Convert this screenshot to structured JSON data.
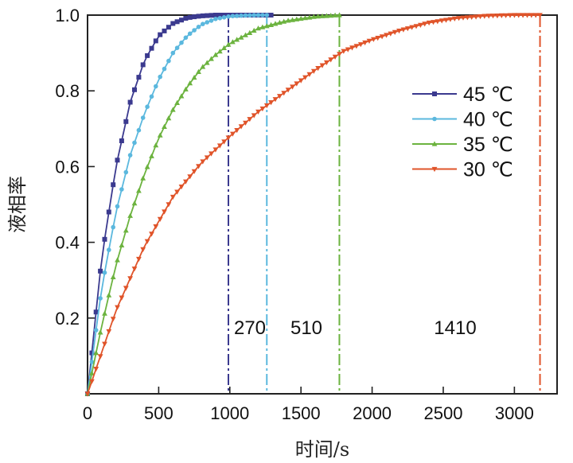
{
  "chart_data": {
    "type": "line",
    "title": "",
    "xlabel": "时间/s",
    "ylabel": "液相率",
    "xlim": [
      0,
      3300
    ],
    "ylim": [
      0,
      1.0
    ],
    "x_ticks": [
      0,
      500,
      1000,
      1500,
      2000,
      2500,
      3000
    ],
    "x_tick_labels": [
      "0",
      "500",
      "1000",
      "1500",
      "2000",
      "2500",
      "3000"
    ],
    "y_ticks": [
      0.2,
      0.4,
      0.6,
      0.8,
      1.0
    ],
    "y_tick_labels": [
      "0.2",
      "0.4",
      "0.6",
      "0.8",
      "1.0"
    ],
    "grid": false,
    "legend_position": "top-right",
    "series": [
      {
        "name": "45 ℃",
        "color": "#3b3a8f",
        "marker": "square",
        "complete_time": 990,
        "x": [
          0,
          100,
          200,
          300,
          400,
          500,
          600,
          700,
          800,
          900,
          1000,
          1100,
          1200,
          1300
        ],
        "y": [
          0,
          0.36,
          0.6,
          0.77,
          0.88,
          0.945,
          0.978,
          0.993,
          0.998,
          1.0,
          1.0,
          1.0,
          1.0,
          1.0
        ]
      },
      {
        "name": "40 ℃",
        "color": "#5bb8de",
        "marker": "circle",
        "complete_time": 1260,
        "x": [
          0,
          100,
          200,
          300,
          400,
          500,
          600,
          700,
          800,
          900,
          1000,
          1100,
          1200,
          1260
        ],
        "y": [
          0,
          0.28,
          0.48,
          0.63,
          0.74,
          0.83,
          0.9,
          0.945,
          0.975,
          0.99,
          0.997,
          0.999,
          1.0,
          1.0
        ]
      },
      {
        "name": "35 ℃",
        "color": "#6cb33f",
        "marker": "triangle-up",
        "complete_time": 1770,
        "x": [
          0,
          100,
          200,
          300,
          400,
          500,
          600,
          700,
          800,
          900,
          1000,
          1200,
          1400,
          1600,
          1770
        ],
        "y": [
          0,
          0.18,
          0.34,
          0.47,
          0.58,
          0.675,
          0.75,
          0.81,
          0.86,
          0.895,
          0.925,
          0.965,
          0.985,
          0.996,
          1.0
        ]
      },
      {
        "name": "30 ℃",
        "color": "#e0542a",
        "marker": "triangle-down",
        "complete_time": 3180,
        "x": [
          0,
          200,
          400,
          600,
          800,
          1000,
          1200,
          1400,
          1600,
          1800,
          2000,
          2200,
          2400,
          2600,
          2800,
          3000,
          3180
        ],
        "y": [
          0,
          0.22,
          0.39,
          0.52,
          0.61,
          0.68,
          0.745,
          0.8,
          0.855,
          0.905,
          0.935,
          0.96,
          0.98,
          0.992,
          0.998,
          1.0,
          1.0
        ]
      }
    ],
    "annotations": [
      {
        "text": "270",
        "x": 290,
        "y": 0.18
      },
      {
        "text": "510",
        "x": 510,
        "y": 0.18
      },
      {
        "text": "1410",
        "x": 1410,
        "y": 0.18
      }
    ]
  }
}
